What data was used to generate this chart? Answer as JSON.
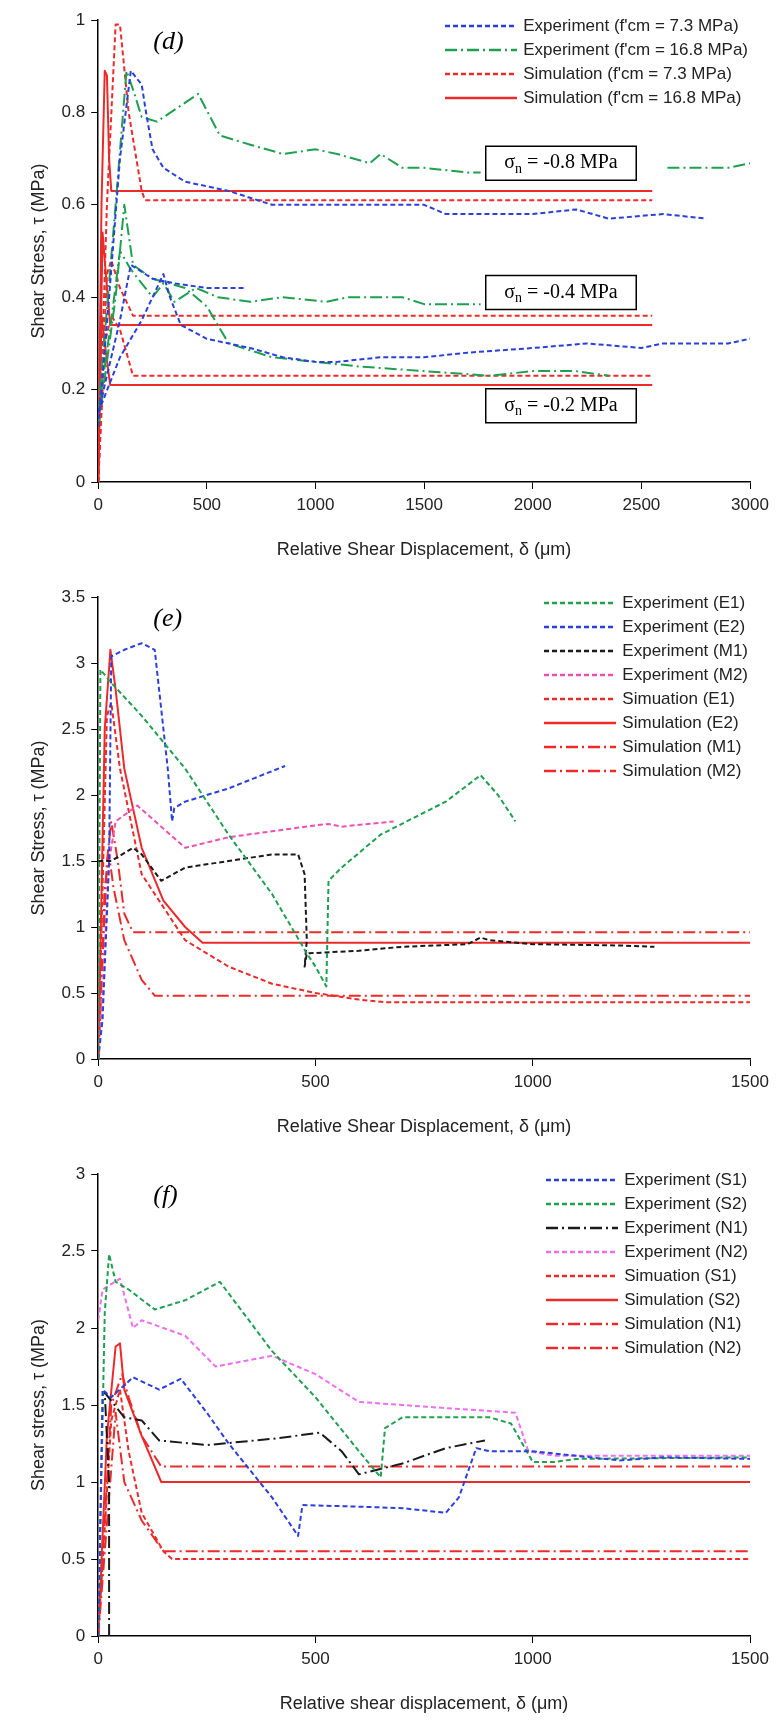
{
  "chart_data": [
    {
      "type": "line",
      "xlabel": "Relative Shear Displacement, δ (μm)",
      "ylabel": "Shear Stress, τ (MPa)",
      "xlim": [
        0,
        3000
      ],
      "xticks": [
        0,
        500,
        1000,
        1500,
        2000,
        2500,
        3000
      ],
      "ylim": [
        0,
        1
      ],
      "yticks": [
        0,
        0.2,
        0.4,
        0.6,
        0.8,
        1
      ],
      "grid": false,
      "legend": "top right",
      "annotations": [
        "(d)",
        "σ$_{n}$ = -0.8 MPa",
        "σ$_{n}$ = -0.4 MPa",
        "σ$_{n}$ = -0.2 MPa"
      ],
      "series": [
        {
          "name": "Experiment (f'cm = 7.3 MPa)",
          "color": "#2a3fdc",
          "line_style": "dashed",
          "x": [
            0,
            50,
            100,
            150,
            200,
            220,
            250,
            300,
            400,
            600,
            800,
            1000,
            1200,
            1500,
            1600,
            1800,
            2000,
            2200,
            2350,
            2600,
            2800
          ],
          "values": [
            0.12,
            0.4,
            0.7,
            0.89,
            0.86,
            0.8,
            0.72,
            0.68,
            0.65,
            0.63,
            0.6,
            0.6,
            0.6,
            0.6,
            0.58,
            0.58,
            0.58,
            0.59,
            0.57,
            0.58,
            0.57
          ]
        },
        {
          "color": "#2a3fdc",
          "line_style": "dashed",
          "x": [
            0,
            100,
            150,
            250,
            350,
            500,
            680
          ],
          "values": [
            0.15,
            0.35,
            0.47,
            0.44,
            0.43,
            0.42,
            0.42
          ]
        },
        {
          "color": "#2a3fdc",
          "line_style": "dashed",
          "x": [
            0,
            100,
            200,
            280,
            300,
            330,
            380,
            500,
            700,
            850,
            1000,
            1100,
            1300,
            1500,
            1700,
            2000,
            2250,
            2500,
            2600,
            2900,
            3000
          ],
          "values": [
            0.15,
            0.27,
            0.35,
            0.43,
            0.45,
            0.4,
            0.34,
            0.31,
            0.29,
            0.27,
            0.26,
            0.26,
            0.27,
            0.27,
            0.28,
            0.29,
            0.3,
            0.29,
            0.3,
            0.3,
            0.31
          ]
        },
        {
          "name": "Experiment (f'cm = 16.8 MPa)",
          "color": "#1fa050",
          "line_style": "dashdot",
          "x": [
            0,
            80,
            130,
            160,
            200,
            270,
            460,
            560,
            700,
            850,
            1000,
            1100,
            1250,
            1300,
            1400,
            1500,
            1700,
            1760,
            2100,
            2620,
            2900,
            3000
          ],
          "values": [
            0.15,
            0.6,
            0.89,
            0.85,
            0.79,
            0.78,
            0.84,
            0.75,
            0.73,
            0.71,
            0.72,
            0.71,
            0.69,
            0.71,
            0.68,
            0.68,
            0.67,
            0.67,
            null,
            0.68,
            0.68,
            0.69
          ]
        },
        {
          "color": "#1fa050",
          "line_style": "dashdot",
          "x": [
            0,
            60,
            100,
            150,
            250,
            300,
            350,
            450,
            550,
            700,
            850,
            1050,
            1150,
            1400,
            1500,
            1760
          ],
          "values": [
            0.15,
            0.35,
            0.5,
            0.46,
            0.4,
            0.43,
            0.39,
            0.42,
            0.4,
            0.39,
            0.4,
            0.39,
            0.4,
            0.4,
            0.385,
            0.385
          ]
        },
        {
          "color": "#1fa050",
          "line_style": "dashdot",
          "x": [
            0,
            80,
            120,
            160,
            250,
            400,
            500,
            600,
            800,
            1000,
            1200,
            1500,
            1800,
            2000,
            2200,
            2350
          ],
          "values": [
            0.12,
            0.4,
            0.6,
            0.47,
            0.44,
            0.42,
            0.38,
            0.3,
            0.27,
            0.26,
            0.25,
            0.24,
            0.23,
            0.24,
            0.24,
            0.23
          ]
        },
        {
          "name": "Simulation (f'cm = 7.3 MPa)",
          "color": "#ec2a2a",
          "line_style": "dashed",
          "x": [
            0,
            40,
            80,
            100,
            140,
            200,
            215,
            2550
          ],
          "values": [
            0,
            0.6,
            0.99,
            0.99,
            0.8,
            0.63,
            0.61,
            0.61
          ]
        },
        {
          "color": "#ec2a2a",
          "line_style": "dashed",
          "x": [
            0,
            40,
            60,
            100,
            160,
            2550
          ],
          "values": [
            0,
            0.45,
            0.48,
            0.42,
            0.36,
            0.36
          ]
        },
        {
          "color": "#ec2a2a",
          "line_style": "dashed",
          "x": [
            0,
            30,
            60,
            100,
            160,
            2550
          ],
          "values": [
            0,
            0.3,
            0.36,
            0.33,
            0.23,
            0.23
          ]
        },
        {
          "name": "Simulation (f'cm = 16.8 MPa)",
          "color": "#ec2a2a",
          "line_style": "solid",
          "x": [
            0,
            15,
            30,
            40,
            50,
            60,
            2550
          ],
          "values": [
            0,
            0.6,
            0.89,
            0.88,
            0.7,
            0.63,
            0.63
          ]
        },
        {
          "color": "#ec2a2a",
          "line_style": "solid",
          "x": [
            0,
            20,
            35,
            55,
            2550
          ],
          "values": [
            0,
            0.54,
            0.45,
            0.34,
            0.34
          ]
        },
        {
          "color": "#ec2a2a",
          "line_style": "solid",
          "x": [
            0,
            15,
            30,
            55,
            2550
          ],
          "values": [
            0,
            0.36,
            0.3,
            0.21,
            0.21
          ]
        }
      ]
    },
    {
      "type": "line",
      "xlabel": "Relative Shear Displacement, δ (μm)",
      "ylabel": "Shear Stress, τ (MPa)",
      "xlim": [
        0,
        1500
      ],
      "xticks": [
        0,
        500,
        1000,
        1500
      ],
      "ylim": [
        0,
        3.5
      ],
      "yticks": [
        0,
        0.5,
        1,
        1.5,
        2,
        2.5,
        3,
        3.5
      ],
      "grid": false,
      "legend": "top right",
      "annotations": [
        "(e)"
      ],
      "series": [
        {
          "name": "Experiment (E1)",
          "color": "#1fa050",
          "line_style": "dashed",
          "x": [
            0,
            5,
            30,
            100,
            200,
            300,
            400,
            480,
            500,
            525,
            530,
            560,
            650,
            800,
            880,
            920,
            960
          ],
          "values": [
            0,
            2.95,
            2.85,
            2.6,
            2.2,
            1.7,
            1.25,
            0.8,
            0.7,
            0.55,
            1.35,
            1.45,
            1.7,
            1.95,
            2.15,
            2.0,
            1.8
          ]
        },
        {
          "name": "Experiment (E2)",
          "color": "#2a3fdc",
          "line_style": "dashed",
          "x": [
            0,
            10,
            25,
            30,
            60,
            100,
            130,
            160,
            170,
            175,
            200,
            300,
            430
          ],
          "values": [
            0,
            0.3,
            1.5,
            3.05,
            3.1,
            3.15,
            3.1,
            2.2,
            1.8,
            1.9,
            1.95,
            2.05,
            2.22
          ]
        },
        {
          "name": "Experiment (M1)",
          "color": "#1a1a1a",
          "line_style": "dashed",
          "x": [
            0,
            30,
            80,
            100,
            145,
            200,
            300,
            400,
            460,
            475,
            480,
            475,
            480,
            600,
            700,
            850,
            880,
            900,
            1000,
            1200,
            1280
          ],
          "values": [
            1.5,
            1.5,
            1.6,
            1.55,
            1.35,
            1.45,
            1.5,
            1.55,
            1.55,
            1.4,
            0.9,
            0.7,
            0.8,
            0.82,
            0.85,
            0.87,
            0.92,
            0.9,
            0.87,
            0.86,
            0.85
          ]
        },
        {
          "name": "Experiment (M2)",
          "color": "#ee4fb0",
          "line_style": "dashed",
          "x": [
            0,
            10,
            25,
            40,
            90,
            200,
            300,
            500,
            530,
            560,
            680
          ],
          "values": [
            0,
            0.5,
            1.5,
            1.8,
            1.92,
            1.6,
            1.68,
            1.77,
            1.78,
            1.76,
            1.8
          ]
        },
        {
          "name": "Simuation (E1)",
          "color": "#ec2a2a",
          "line_style": "dashed",
          "x": [
            0,
            20,
            30,
            50,
            100,
            200,
            300,
            400,
            500,
            600,
            660,
            1500
          ],
          "values": [
            0,
            2.6,
            2.7,
            2.2,
            1.4,
            0.9,
            0.7,
            0.57,
            0.5,
            0.45,
            0.43,
            0.43
          ]
        },
        {
          "name": "Simulation (E2)",
          "color": "#ec2a2a",
          "line_style": "solid",
          "x": [
            0,
            15,
            28,
            40,
            60,
            100,
            150,
            200,
            240,
            1500
          ],
          "values": [
            0,
            2.5,
            3.1,
            2.8,
            2.2,
            1.6,
            1.2,
            1.0,
            0.88,
            0.88
          ]
        },
        {
          "name": "Simulation (M1)",
          "color": "#ec2a2a",
          "line_style": "dashdot",
          "x": [
            0,
            15,
            25,
            35,
            60,
            100,
            130,
            1500
          ],
          "values": [
            0,
            1.3,
            1.55,
            1.3,
            0.9,
            0.6,
            0.48,
            0.48
          ]
        },
        {
          "name": "Simulation (M2)",
          "color": "#ec2a2a",
          "line_style": "dashdot",
          "x": [
            0,
            20,
            30,
            45,
            60,
            80,
            1500
          ],
          "values": [
            0,
            1.5,
            1.8,
            1.5,
            1.1,
            0.96,
            0.96
          ]
        }
      ]
    },
    {
      "type": "line",
      "xlabel": "Relative shear displacement, δ (μm)",
      "ylabel": "Shear stress, τ (MPa)",
      "xlim": [
        0,
        1500
      ],
      "xticks": [
        0,
        500,
        1000,
        1500
      ],
      "ylim": [
        0,
        3
      ],
      "yticks": [
        0,
        0.5,
        1,
        1.5,
        2,
        2.5,
        3
      ],
      "grid": false,
      "legend": "top right",
      "annotations": [
        "(f)"
      ],
      "series": [
        {
          "name": "Experiment (S1)",
          "color": "#2a3fdc",
          "line_style": "dashed",
          "x": [
            0,
            10,
            30,
            80,
            140,
            190,
            250,
            300,
            400,
            460,
            470,
            600,
            700,
            800,
            830,
            870,
            900,
            1000,
            1200,
            1300,
            1500
          ],
          "values": [
            0,
            1.6,
            1.55,
            1.68,
            1.6,
            1.67,
            1.45,
            1.25,
            0.9,
            0.65,
            0.85,
            0.84,
            0.83,
            0.8,
            0.9,
            1.22,
            1.2,
            1.2,
            1.14,
            1.16,
            1.15
          ]
        },
        {
          "name": "Experiment (S2)",
          "color": "#1fa050",
          "line_style": "dashed",
          "x": [
            0,
            15,
            25,
            40,
            70,
            130,
            200,
            280,
            400,
            500,
            600,
            650,
            660,
            700,
            900,
            950,
            1000,
            1050,
            1100,
            1500
          ],
          "values": [
            0,
            2.1,
            2.48,
            2.3,
            2.25,
            2.12,
            2.18,
            2.3,
            1.85,
            1.55,
            1.2,
            1.03,
            1.35,
            1.42,
            1.42,
            1.38,
            1.13,
            1.13,
            1.15,
            1.16
          ]
        },
        {
          "name": "Experiment (N1)",
          "color": "#1a1a1a",
          "line_style": "dashdot",
          "x": [
            25,
            25,
            15,
            60,
            100,
            140,
            250,
            400,
            510,
            560,
            600,
            700,
            800,
            890
          ],
          "values": [
            0,
            1.0,
            1.58,
            1.42,
            1.4,
            1.27,
            1.24,
            1.28,
            1.32,
            1.2,
            1.05,
            1.12,
            1.22,
            1.27
          ]
        },
        {
          "name": "Experiment (N2)",
          "color": "#ee6fee",
          "line_style": "dashed",
          "x": [
            0,
            10,
            50,
            80,
            100,
            200,
            270,
            400,
            500,
            600,
            700,
            800,
            960,
            990,
            1050,
            1500
          ],
          "values": [
            2.05,
            2.25,
            2.32,
            2.0,
            2.05,
            1.95,
            1.75,
            1.82,
            1.7,
            1.52,
            1.5,
            1.48,
            1.45,
            1.2,
            1.17,
            1.17
          ]
        },
        {
          "name": "Simuation (S1)",
          "color": "#ec2a2a",
          "line_style": "dashed",
          "x": [
            0,
            30,
            50,
            70,
            100,
            150,
            170,
            1500
          ],
          "values": [
            0,
            1.4,
            1.6,
            1.2,
            0.8,
            0.55,
            0.5,
            0.5
          ]
        },
        {
          "name": "Simulation (S2)",
          "color": "#ec2a2a",
          "line_style": "solid",
          "x": [
            0,
            20,
            40,
            50,
            60,
            100,
            145,
            1500
          ],
          "values": [
            0,
            1.3,
            1.88,
            1.9,
            1.6,
            1.3,
            1.0,
            1.0
          ]
        },
        {
          "name": "Simulation (N1)",
          "color": "#ec2a2a",
          "line_style": "dashdot",
          "x": [
            0,
            40,
            60,
            100,
            150,
            1500
          ],
          "values": [
            0,
            1.45,
            1.0,
            0.75,
            0.55,
            0.55
          ]
        },
        {
          "name": "Simulation (N2)",
          "color": "#ec2a2a",
          "line_style": "dashdot",
          "x": [
            0,
            30,
            55,
            70,
            100,
            145,
            1500
          ],
          "values": [
            0,
            1.5,
            1.7,
            1.55,
            1.3,
            1.1,
            1.1
          ]
        }
      ]
    }
  ]
}
